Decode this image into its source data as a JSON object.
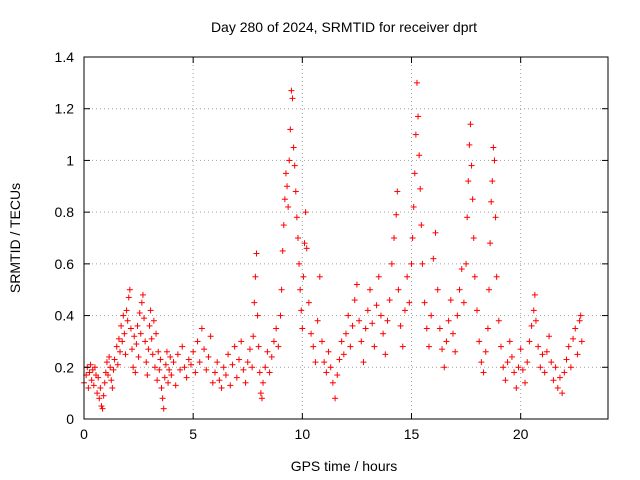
{
  "chart_data": {
    "type": "scatter",
    "title": "Day 280 of 2024, SRMTID for receiver dprt",
    "xlabel": "GPS time / hours",
    "ylabel": "SRMTID / TECUs",
    "xlim": [
      0,
      24
    ],
    "ylim": [
      0,
      1.4
    ],
    "xticks": [
      0,
      5,
      10,
      15,
      20
    ],
    "xtick_labels": [
      "0",
      "5",
      "10",
      "15",
      "20"
    ],
    "yticks": [
      0,
      0.2,
      0.4,
      0.6,
      0.8,
      1.0,
      1.2,
      1.4
    ],
    "ytick_labels": [
      "0",
      "0.2",
      "0.4",
      "0.6",
      "0.8",
      "1",
      "1.2",
      "1.4"
    ],
    "grid": true,
    "marker": "plus",
    "color": "#ff0000",
    "series": [
      {
        "name": "SRMTID",
        "points": [
          [
            0.0,
            0.14
          ],
          [
            0.1,
            0.17
          ],
          [
            0.15,
            0.2
          ],
          [
            0.2,
            0.12
          ],
          [
            0.25,
            0.18
          ],
          [
            0.3,
            0.21
          ],
          [
            0.35,
            0.15
          ],
          [
            0.4,
            0.19
          ],
          [
            0.45,
            0.13
          ],
          [
            0.5,
            0.2
          ],
          [
            0.55,
            0.17
          ],
          [
            0.6,
            0.1
          ],
          [
            0.65,
            0.16
          ],
          [
            0.7,
            0.08
          ],
          [
            0.75,
            0.12
          ],
          [
            0.8,
            0.05
          ],
          [
            0.85,
            0.04
          ],
          [
            0.9,
            0.09
          ],
          [
            0.95,
            0.14
          ],
          [
            1.0,
            0.18
          ],
          [
            1.05,
            0.22
          ],
          [
            1.1,
            0.17
          ],
          [
            1.15,
            0.24
          ],
          [
            1.2,
            0.2
          ],
          [
            1.25,
            0.15
          ],
          [
            1.3,
            0.12
          ],
          [
            1.35,
            0.19
          ],
          [
            1.4,
            0.23
          ],
          [
            1.5,
            0.28
          ],
          [
            1.55,
            0.21
          ],
          [
            1.6,
            0.31
          ],
          [
            1.65,
            0.26
          ],
          [
            1.7,
            0.36
          ],
          [
            1.75,
            0.3
          ],
          [
            1.8,
            0.4
          ],
          [
            1.85,
            0.33
          ],
          [
            1.9,
            0.25
          ],
          [
            1.95,
            0.42
          ],
          [
            2.0,
            0.38
          ],
          [
            2.05,
            0.47
          ],
          [
            2.1,
            0.5
          ],
          [
            2.15,
            0.35
          ],
          [
            2.2,
            0.27
          ],
          [
            2.25,
            0.2
          ],
          [
            2.3,
            0.32
          ],
          [
            2.35,
            0.18
          ],
          [
            2.4,
            0.29
          ],
          [
            2.45,
            0.36
          ],
          [
            2.5,
            0.24
          ],
          [
            2.55,
            0.41
          ],
          [
            2.6,
            0.33
          ],
          [
            2.65,
            0.45
          ],
          [
            2.7,
            0.48
          ],
          [
            2.75,
            0.39
          ],
          [
            2.8,
            0.3
          ],
          [
            2.85,
            0.22
          ],
          [
            2.9,
            0.17
          ],
          [
            2.95,
            0.27
          ],
          [
            3.0,
            0.36
          ],
          [
            3.05,
            0.42
          ],
          [
            3.1,
            0.31
          ],
          [
            3.15,
            0.25
          ],
          [
            3.2,
            0.38
          ],
          [
            3.25,
            0.2
          ],
          [
            3.3,
            0.33
          ],
          [
            3.35,
            0.15
          ],
          [
            3.4,
            0.26
          ],
          [
            3.45,
            0.19
          ],
          [
            3.5,
            0.23
          ],
          [
            3.55,
            0.12
          ],
          [
            3.6,
            0.08
          ],
          [
            3.65,
            0.04
          ],
          [
            3.7,
            0.16
          ],
          [
            3.75,
            0.21
          ],
          [
            3.8,
            0.26
          ],
          [
            3.85,
            0.14
          ],
          [
            3.9,
            0.19
          ],
          [
            3.95,
            0.24
          ],
          [
            4.0,
            0.17
          ],
          [
            4.1,
            0.22
          ],
          [
            4.2,
            0.13
          ],
          [
            4.3,
            0.25
          ],
          [
            4.4,
            0.19
          ],
          [
            4.5,
            0.28
          ],
          [
            4.6,
            0.2
          ],
          [
            4.7,
            0.16
          ],
          [
            4.8,
            0.23
          ],
          [
            4.9,
            0.21
          ],
          [
            5.0,
            0.26
          ],
          [
            5.1,
            0.18
          ],
          [
            5.2,
            0.3
          ],
          [
            5.3,
            0.22
          ],
          [
            5.4,
            0.35
          ],
          [
            5.5,
            0.27
          ],
          [
            5.6,
            0.19
          ],
          [
            5.7,
            0.24
          ],
          [
            5.8,
            0.32
          ],
          [
            5.9,
            0.14
          ],
          [
            6.0,
            0.18
          ],
          [
            6.1,
            0.22
          ],
          [
            6.2,
            0.15
          ],
          [
            6.3,
            0.12
          ],
          [
            6.4,
            0.2
          ],
          [
            6.5,
            0.17
          ],
          [
            6.6,
            0.25
          ],
          [
            6.7,
            0.13
          ],
          [
            6.8,
            0.21
          ],
          [
            6.9,
            0.28
          ],
          [
            7.0,
            0.16
          ],
          [
            7.1,
            0.23
          ],
          [
            7.2,
            0.3
          ],
          [
            7.3,
            0.19
          ],
          [
            7.4,
            0.14
          ],
          [
            7.5,
            0.22
          ],
          [
            7.6,
            0.27
          ],
          [
            7.7,
            0.2
          ],
          [
            7.75,
            0.32
          ],
          [
            7.8,
            0.45
          ],
          [
            7.85,
            0.55
          ],
          [
            7.9,
            0.64
          ],
          [
            7.95,
            0.4
          ],
          [
            8.0,
            0.28
          ],
          [
            8.05,
            0.18
          ],
          [
            8.1,
            0.1
          ],
          [
            8.15,
            0.08
          ],
          [
            8.2,
            0.14
          ],
          [
            8.3,
            0.2
          ],
          [
            8.4,
            0.26
          ],
          [
            8.5,
            0.18
          ],
          [
            8.6,
            0.24
          ],
          [
            8.7,
            0.3
          ],
          [
            8.8,
            0.35
          ],
          [
            8.9,
            0.28
          ],
          [
            9.0,
            0.4
          ],
          [
            9.05,
            0.5
          ],
          [
            9.1,
            0.65
          ],
          [
            9.15,
            0.75
          ],
          [
            9.2,
            0.85
          ],
          [
            9.25,
            0.95
          ],
          [
            9.3,
            0.9
          ],
          [
            9.35,
            0.82
          ],
          [
            9.4,
            1.0
          ],
          [
            9.45,
            1.12
          ],
          [
            9.5,
            1.27
          ],
          [
            9.55,
            1.24
          ],
          [
            9.6,
            1.05
          ],
          [
            9.65,
            0.98
          ],
          [
            9.7,
            0.88
          ],
          [
            9.75,
            0.78
          ],
          [
            9.8,
            0.7
          ],
          [
            9.85,
            0.6
          ],
          [
            9.9,
            0.5
          ],
          [
            9.95,
            0.42
          ],
          [
            10.0,
            0.35
          ],
          [
            10.05,
            0.55
          ],
          [
            10.1,
            0.68
          ],
          [
            10.15,
            0.8
          ],
          [
            10.2,
            0.66
          ],
          [
            10.3,
            0.45
          ],
          [
            10.4,
            0.33
          ],
          [
            10.5,
            0.28
          ],
          [
            10.6,
            0.22
          ],
          [
            10.7,
            0.38
          ],
          [
            10.8,
            0.55
          ],
          [
            10.9,
            0.3
          ],
          [
            11.0,
            0.22
          ],
          [
            11.1,
            0.18
          ],
          [
            11.2,
            0.26
          ],
          [
            11.3,
            0.2
          ],
          [
            11.4,
            0.14
          ],
          [
            11.5,
            0.08
          ],
          [
            11.6,
            0.17
          ],
          [
            11.7,
            0.23
          ],
          [
            11.8,
            0.3
          ],
          [
            11.9,
            0.25
          ],
          [
            12.0,
            0.33
          ],
          [
            12.1,
            0.4
          ],
          [
            12.2,
            0.28
          ],
          [
            12.3,
            0.36
          ],
          [
            12.4,
            0.46
          ],
          [
            12.5,
            0.52
          ],
          [
            12.6,
            0.38
          ],
          [
            12.7,
            0.3
          ],
          [
            12.8,
            0.22
          ],
          [
            12.9,
            0.35
          ],
          [
            13.0,
            0.42
          ],
          [
            13.1,
            0.5
          ],
          [
            13.2,
            0.37
          ],
          [
            13.3,
            0.28
          ],
          [
            13.4,
            0.44
          ],
          [
            13.5,
            0.55
          ],
          [
            13.6,
            0.4
          ],
          [
            13.7,
            0.33
          ],
          [
            13.8,
            0.25
          ],
          [
            13.9,
            0.38
          ],
          [
            14.0,
            0.46
          ],
          [
            14.1,
            0.6
          ],
          [
            14.2,
            0.7
          ],
          [
            14.3,
            0.79
          ],
          [
            14.35,
            0.88
          ],
          [
            14.4,
            0.5
          ],
          [
            14.5,
            0.36
          ],
          [
            14.6,
            0.28
          ],
          [
            14.7,
            0.42
          ],
          [
            14.8,
            0.55
          ],
          [
            14.9,
            0.45
          ],
          [
            15.0,
            0.6
          ],
          [
            15.05,
            0.7
          ],
          [
            15.1,
            0.82
          ],
          [
            15.15,
            0.95
          ],
          [
            15.2,
            1.1
          ],
          [
            15.25,
            1.3
          ],
          [
            15.3,
            1.17
          ],
          [
            15.35,
            1.02
          ],
          [
            15.4,
            0.89
          ],
          [
            15.45,
            0.75
          ],
          [
            15.5,
            0.6
          ],
          [
            15.6,
            0.45
          ],
          [
            15.7,
            0.35
          ],
          [
            15.8,
            0.28
          ],
          [
            15.9,
            0.4
          ],
          [
            16.0,
            0.62
          ],
          [
            16.1,
            0.72
          ],
          [
            16.2,
            0.5
          ],
          [
            16.3,
            0.35
          ],
          [
            16.4,
            0.27
          ],
          [
            16.5,
            0.2
          ],
          [
            16.6,
            0.3
          ],
          [
            16.7,
            0.38
          ],
          [
            16.8,
            0.46
          ],
          [
            16.9,
            0.33
          ],
          [
            17.0,
            0.26
          ],
          [
            17.1,
            0.4
          ],
          [
            17.2,
            0.5
          ],
          [
            17.3,
            0.58
          ],
          [
            17.4,
            0.45
          ],
          [
            17.5,
            0.6
          ],
          [
            17.55,
            0.78
          ],
          [
            17.6,
            0.92
          ],
          [
            17.65,
            1.06
          ],
          [
            17.7,
            1.14
          ],
          [
            17.75,
            0.98
          ],
          [
            17.8,
            0.85
          ],
          [
            17.85,
            0.7
          ],
          [
            17.9,
            0.55
          ],
          [
            18.0,
            0.42
          ],
          [
            18.1,
            0.3
          ],
          [
            18.2,
            0.22
          ],
          [
            18.3,
            0.18
          ],
          [
            18.4,
            0.26
          ],
          [
            18.5,
            0.35
          ],
          [
            18.55,
            0.5
          ],
          [
            18.6,
            0.68
          ],
          [
            18.65,
            0.84
          ],
          [
            18.7,
            0.92
          ],
          [
            18.75,
            1.05
          ],
          [
            18.8,
            1.0
          ],
          [
            18.85,
            0.78
          ],
          [
            18.9,
            0.55
          ],
          [
            19.0,
            0.38
          ],
          [
            19.1,
            0.28
          ],
          [
            19.2,
            0.2
          ],
          [
            19.3,
            0.15
          ],
          [
            19.4,
            0.22
          ],
          [
            19.5,
            0.3
          ],
          [
            19.6,
            0.24
          ],
          [
            19.7,
            0.18
          ],
          [
            19.8,
            0.12
          ],
          [
            19.9,
            0.2
          ],
          [
            20.0,
            0.27
          ],
          [
            20.1,
            0.19
          ],
          [
            20.2,
            0.14
          ],
          [
            20.3,
            0.22
          ],
          [
            20.4,
            0.3
          ],
          [
            20.5,
            0.36
          ],
          [
            20.6,
            0.42
          ],
          [
            20.65,
            0.48
          ],
          [
            20.7,
            0.38
          ],
          [
            20.8,
            0.28
          ],
          [
            20.9,
            0.2
          ],
          [
            21.0,
            0.25
          ],
          [
            21.1,
            0.18
          ],
          [
            21.2,
            0.26
          ],
          [
            21.3,
            0.32
          ],
          [
            21.4,
            0.22
          ],
          [
            21.5,
            0.15
          ],
          [
            21.6,
            0.2
          ],
          [
            21.7,
            0.12
          ],
          [
            21.8,
            0.16
          ],
          [
            21.9,
            0.1
          ],
          [
            22.0,
            0.18
          ],
          [
            22.1,
            0.23
          ],
          [
            22.2,
            0.28
          ],
          [
            22.3,
            0.2
          ],
          [
            22.4,
            0.31
          ],
          [
            22.5,
            0.35
          ],
          [
            22.6,
            0.25
          ],
          [
            22.7,
            0.38
          ],
          [
            22.75,
            0.4
          ],
          [
            22.8,
            0.3
          ]
        ]
      }
    ]
  }
}
